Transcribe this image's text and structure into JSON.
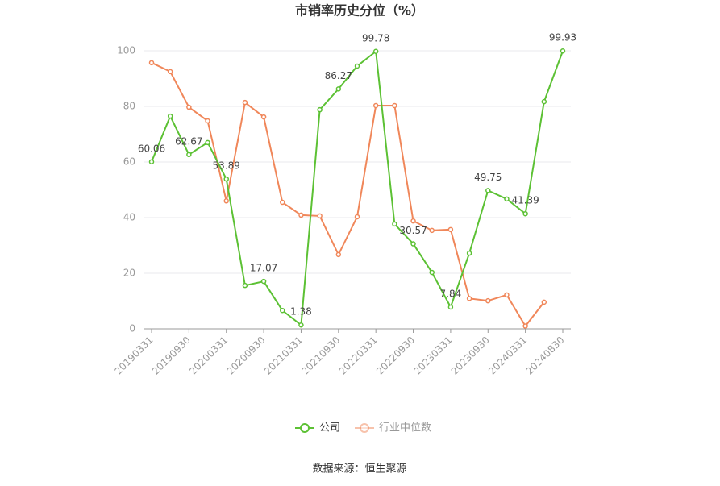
{
  "chart_data": {
    "type": "line",
    "title": "市销率历史分位（%）",
    "categories": [
      "20190331",
      null,
      "20190930",
      null,
      "20200331",
      null,
      "20200930",
      null,
      "20210331",
      null,
      "20210930",
      null,
      "20220331",
      null,
      "20220930",
      null,
      "20230331",
      null,
      "20230930",
      null,
      "20240331",
      null,
      "20240830"
    ],
    "series": [
      {
        "name": "公司",
        "color": "#5cc134",
        "values": [
          60.06,
          76.5,
          62.67,
          67,
          53.89,
          15.6,
          17.07,
          6.6,
          1.38,
          78.8,
          86.27,
          94.5,
          99.78,
          37.7,
          30.57,
          20.3,
          7.84,
          27.2,
          49.75,
          46.7,
          41.39,
          81.7,
          99.93
        ],
        "value_labels": [
          "60.06",
          null,
          "62.67",
          null,
          "53.89",
          null,
          "17.07",
          null,
          "1.38",
          null,
          "86.27",
          null,
          "99.78",
          null,
          "30.57",
          null,
          "7.84",
          null,
          "49.75",
          null,
          "41.39",
          null,
          "99.93"
        ]
      },
      {
        "name": "行业中位数",
        "color": "#f0875a",
        "values": [
          95.7,
          92.5,
          79.7,
          74.8,
          46,
          81.4,
          76.2,
          45.5,
          40.9,
          40.6,
          26.7,
          40.3,
          80.3,
          80.3,
          38.8,
          35.4,
          35.7,
          10.9,
          10.1,
          12.2,
          1,
          9.6,
          null
        ]
      }
    ],
    "ylim": [
      0,
      100
    ],
    "yticks": [
      0,
      20,
      40,
      60,
      80,
      100
    ],
    "grid": true,
    "legend": "bottom",
    "source": "数据来源：恒生聚源"
  }
}
